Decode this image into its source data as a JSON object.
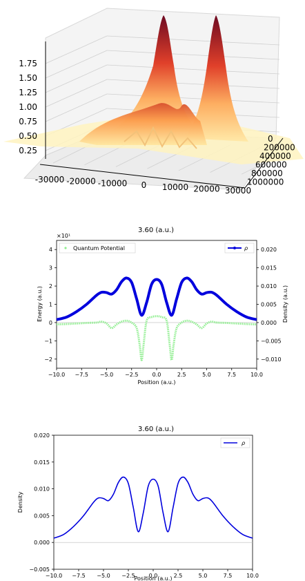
{
  "chart_data": [
    {
      "type": "surface3d",
      "xticks": [
        "-30000",
        "-20000",
        "-10000",
        "0",
        "10000",
        "20000",
        "30000"
      ],
      "yticks": [
        "0",
        "200000",
        "400000",
        "600000",
        "800000",
        "1000000"
      ],
      "zticks": [
        "0.25",
        "0.50",
        "0.75",
        "1.00",
        "1.25",
        "1.50",
        "1.75"
      ],
      "colormap": "YlOrRd"
    },
    {
      "type": "line",
      "title": "3.60 (a.u.)",
      "xlabel": "Position (a.u.)",
      "ylabel": "Energy (a.u.)",
      "ylabel_right": "Density (a.u.)",
      "exponent": "×10¹",
      "xlim": [
        -10,
        10
      ],
      "ylim": [
        -2.5,
        4.5
      ],
      "ylim_right": [
        -0.0125,
        0.0225
      ],
      "xticks": [
        "−10.0",
        "−7.5",
        "−5.0",
        "−2.5",
        "0.0",
        "2.5",
        "5.0",
        "7.5",
        "10.0"
      ],
      "yticks": [
        "−2",
        "−1",
        "0",
        "1",
        "2",
        "3",
        "4"
      ],
      "yticks_right": [
        "−0.010",
        "−0.005",
        "0.000",
        "0.005",
        "0.010",
        "0.015",
        "0.020"
      ],
      "series": [
        {
          "name": "Quantum Potential",
          "color": "#90ee90",
          "axis": "left",
          "x": [
            -10,
            -9,
            -8,
            -7,
            -6,
            -5.5,
            -5,
            -4.5,
            -4,
            -3.5,
            -3,
            -2.5,
            -2,
            -1.7,
            -1.5,
            -1.3,
            -1,
            -0.5,
            0,
            0.5,
            1,
            1.3,
            1.5,
            1.7,
            2,
            2.5,
            3,
            3.5,
            4,
            4.5,
            5,
            5.5,
            6,
            7,
            8,
            9,
            10
          ],
          "y": [
            -0.1,
            -0.08,
            -0.05,
            -0.02,
            0,
            0.05,
            -0.05,
            -0.3,
            -0.1,
            0.05,
            0.1,
            0,
            -0.3,
            -1.2,
            -2.05,
            -1.2,
            0.1,
            0.3,
            0.35,
            0.3,
            0.1,
            -1.2,
            -2.05,
            -1.2,
            -0.3,
            0,
            0.1,
            0.05,
            -0.1,
            -0.3,
            -0.05,
            0.05,
            0,
            -0.02,
            -0.05,
            -0.08,
            -0.1
          ]
        },
        {
          "name": "ρ",
          "color": "#0000dd",
          "axis": "right",
          "x": [
            -10,
            -9,
            -8,
            -7,
            -6,
            -5.5,
            -5,
            -4.5,
            -4,
            -3.5,
            -3,
            -2.5,
            -2,
            -1.5,
            -1,
            -0.5,
            0,
            0.5,
            1,
            1.5,
            2,
            2.5,
            3,
            3.5,
            4,
            4.5,
            5,
            5.5,
            6,
            7,
            8,
            9,
            10
          ],
          "y": [
            0.0008,
            0.0015,
            0.003,
            0.005,
            0.0075,
            0.0083,
            0.0082,
            0.0078,
            0.009,
            0.0112,
            0.0122,
            0.011,
            0.0065,
            0.002,
            0.0055,
            0.0105,
            0.0118,
            0.0105,
            0.0055,
            0.002,
            0.0065,
            0.011,
            0.0122,
            0.0112,
            0.009,
            0.0078,
            0.0082,
            0.0083,
            0.0075,
            0.005,
            0.003,
            0.0015,
            0.0008
          ]
        }
      ]
    },
    {
      "type": "line",
      "title": "3.60 (a.u.)",
      "xlabel": "Position (a.u.)",
      "ylabel": "Density",
      "xlim": [
        -10,
        10
      ],
      "ylim": [
        -0.005,
        0.02
      ],
      "xticks": [
        "−10.0",
        "−7.5",
        "−5.0",
        "−2.5",
        "0.0",
        "2.5",
        "5.0",
        "7.5",
        "10.0"
      ],
      "yticks": [
        "−0.005",
        "0.000",
        "0.005",
        "0.010",
        "0.015",
        "0.020"
      ],
      "series": [
        {
          "name": "ρ",
          "color": "#0000dd",
          "x": [
            -10,
            -9,
            -8,
            -7,
            -6,
            -5.5,
            -5,
            -4.5,
            -4,
            -3.5,
            -3,
            -2.5,
            -2,
            -1.5,
            -1,
            -0.5,
            0,
            0.5,
            1,
            1.5,
            2,
            2.5,
            3,
            3.5,
            4,
            4.5,
            5,
            5.5,
            6,
            7,
            8,
            9,
            10
          ],
          "y": [
            0.0008,
            0.0015,
            0.003,
            0.005,
            0.0075,
            0.0083,
            0.0082,
            0.0078,
            0.009,
            0.0112,
            0.0122,
            0.011,
            0.0065,
            0.002,
            0.0055,
            0.0105,
            0.0118,
            0.0105,
            0.0055,
            0.002,
            0.0065,
            0.011,
            0.0122,
            0.0112,
            0.009,
            0.0078,
            0.0082,
            0.0083,
            0.0075,
            0.005,
            0.003,
            0.0015,
            0.0008
          ]
        }
      ]
    }
  ]
}
